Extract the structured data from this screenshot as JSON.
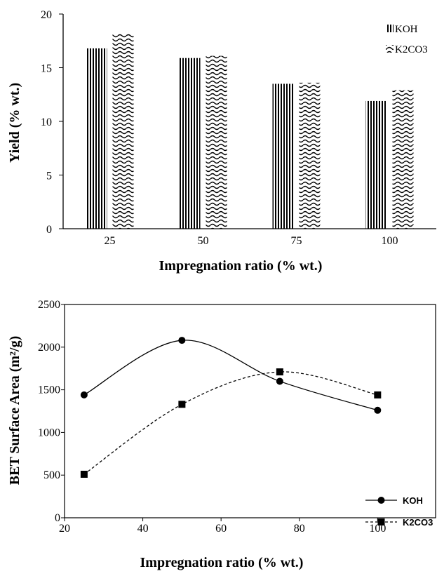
{
  "chart_data": [
    {
      "type": "bar",
      "xlabel": "Impregnation ratio (% wt.)",
      "ylabel": "Yield (% wt.)",
      "categories": [
        "25",
        "50",
        "75",
        "100"
      ],
      "ylim": [
        0,
        20
      ],
      "yticks": [
        0,
        5,
        10,
        15,
        20
      ],
      "legend_position": "top-right",
      "series": [
        {
          "name": "KOH",
          "values": [
            16.8,
            15.9,
            13.5,
            11.9
          ],
          "pattern": "vertical-lines"
        },
        {
          "name": "K2CO3",
          "values": [
            18.2,
            16.1,
            13.6,
            12.9
          ],
          "pattern": "waves"
        }
      ]
    },
    {
      "type": "line",
      "xlabel": "Impregnation ratio  (% wt.)",
      "ylabel": "BET Surface Area (m²/g)",
      "xlim": [
        20,
        115
      ],
      "ylim": [
        0,
        2500
      ],
      "xticks": [
        20,
        40,
        60,
        80,
        100
      ],
      "yticks": [
        0,
        500,
        1000,
        1500,
        2000,
        2500
      ],
      "legend_position": "bottom-right",
      "series": [
        {
          "name": "KOH",
          "x": [
            25,
            50,
            75,
            100
          ],
          "y": [
            1440,
            2080,
            1600,
            1260
          ],
          "marker": "circle",
          "line": "solid",
          "color": "#000000"
        },
        {
          "name": "K2CO3",
          "x": [
            25,
            50,
            75,
            100
          ],
          "y": [
            510,
            1330,
            1710,
            1440
          ],
          "marker": "square",
          "line": "dashed",
          "color": "#000000"
        }
      ]
    }
  ]
}
